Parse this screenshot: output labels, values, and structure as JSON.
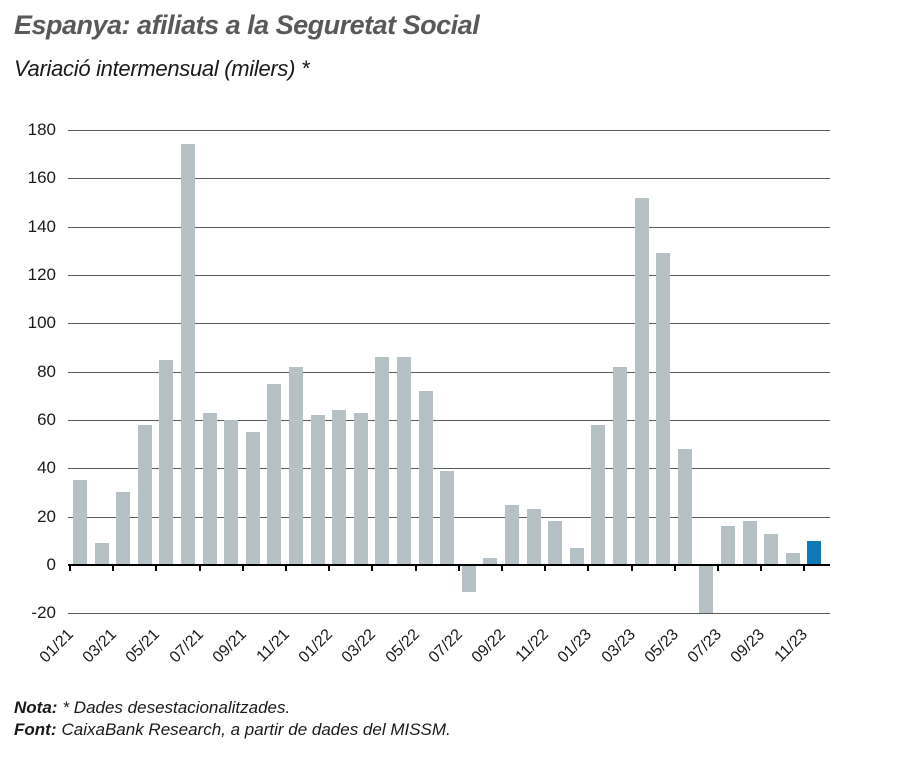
{
  "chart_data": {
    "type": "bar",
    "title": "Espanya: afiliats a la Seguretat Social",
    "subtitle": "Variació intermensual (milers) *",
    "x": [
      "01/21",
      "02/21",
      "03/21",
      "04/21",
      "05/21",
      "06/21",
      "07/21",
      "08/21",
      "09/21",
      "10/21",
      "11/21",
      "12/21",
      "01/22",
      "02/22",
      "03/22",
      "04/22",
      "05/22",
      "06/22",
      "07/22",
      "08/22",
      "09/22",
      "10/22",
      "11/22",
      "12/22",
      "01/23",
      "02/23",
      "03/23",
      "04/23",
      "05/23",
      "06/23",
      "07/23",
      "08/23",
      "09/23",
      "10/23",
      "11/23"
    ],
    "values": [
      35,
      9,
      30,
      58,
      85,
      174,
      63,
      60,
      55,
      75,
      82,
      62,
      64,
      63,
      86,
      86,
      72,
      39,
      -11,
      3,
      25,
      23,
      18,
      7,
      58,
      82,
      152,
      129,
      48,
      -20,
      16,
      18,
      13,
      5,
      10
    ],
    "x_tick_labels": [
      "01/21",
      "03/21",
      "05/21",
      "07/21",
      "09/21",
      "11/21",
      "01/22",
      "03/22",
      "05/22",
      "07/22",
      "09/22",
      "11/22",
      "01/23",
      "03/23",
      "05/23",
      "07/23",
      "09/23",
      "11/23"
    ],
    "y_ticks": [
      180,
      160,
      140,
      120,
      100,
      80,
      60,
      40,
      20,
      0,
      -20
    ],
    "ylim": [
      -20,
      180
    ],
    "grid": "horizontal",
    "legend": "none",
    "bar_color": "#b6c1c5",
    "highlight_color": "#0f78b8",
    "highlight_index": 34
  },
  "notes": {
    "nota_label": "Nota:",
    "nota_text": "* Dades desestacionalitzades.",
    "font_label": "Font:",
    "font_text": "CaixaBank Research, a partir de dades del MISSM."
  }
}
